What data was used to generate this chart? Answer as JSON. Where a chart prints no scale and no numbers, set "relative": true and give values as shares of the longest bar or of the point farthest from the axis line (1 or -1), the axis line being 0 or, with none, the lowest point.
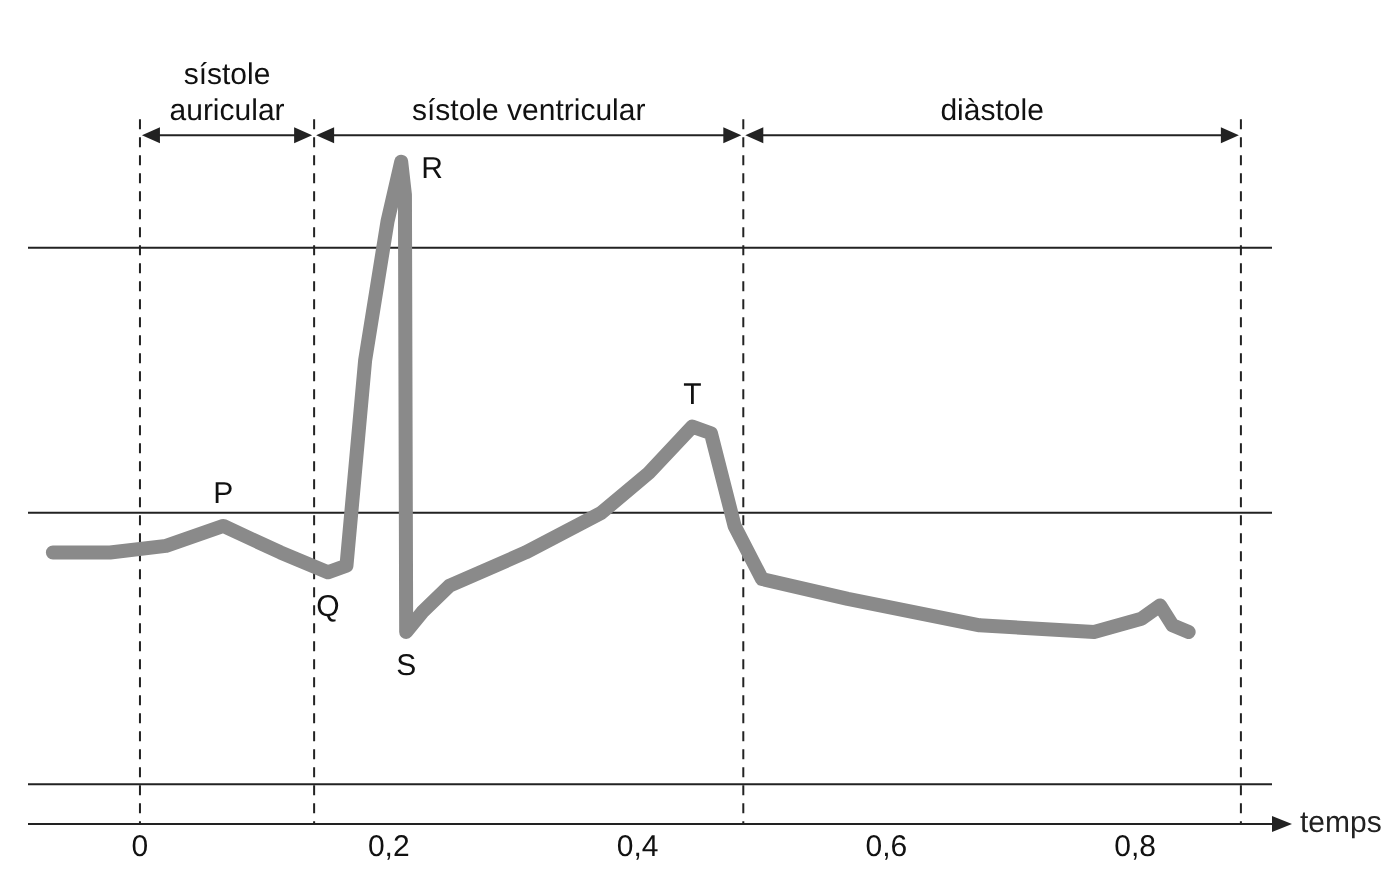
{
  "chart_data": {
    "type": "line",
    "relative": true,
    "xlabel": "temps",
    "xlim": [
      -0.09,
      0.91
    ],
    "xticks": [
      0,
      {
        "value": 0.2,
        "label": "0,2"
      },
      {
        "value": 0.4,
        "label": "0,4"
      },
      {
        "value": 0.6,
        "label": "0,6"
      },
      {
        "value": 0.8,
        "label": "0,8"
      }
    ],
    "series": [
      {
        "color": "#8a8a8a",
        "x": [
          -0.07,
          -0.024,
          0.021,
          0.067,
          0.113,
          0.151,
          0.166,
          0.181,
          0.199,
          0.21,
          0.213,
          0.214,
          0.227,
          0.249,
          0.31,
          0.371,
          0.409,
          0.444,
          0.459,
          0.478,
          0.5,
          0.569,
          0.675,
          0.767,
          0.805,
          0.82,
          0.83,
          0.843
        ],
        "values": [
          0.41,
          0.41,
          0.42,
          0.45,
          0.41,
          0.38,
          0.39,
          0.7,
          0.91,
          1,
          0.95,
          0.29,
          0.32,
          0.36,
          0.41,
          0.47,
          0.53,
          0.6,
          0.59,
          0.45,
          0.37,
          0.34,
          0.3,
          0.29,
          0.31,
          0.33,
          0.3,
          0.29
        ]
      }
    ],
    "ref_lines": [
      {
        "axis": "y",
        "value": 0.87,
        "color": "#222222"
      },
      {
        "axis": "y",
        "value": 0.47,
        "color": "#222222"
      },
      {
        "axis": "y",
        "value": 0.06,
        "color": "#222222"
      },
      {
        "axis": "x",
        "value": 0,
        "color": "#222222",
        "line_style": "dashed"
      },
      {
        "axis": "x",
        "value": 0.14,
        "color": "#222222",
        "line_style": "dashed"
      },
      {
        "axis": "x",
        "value": 0.485,
        "color": "#222222",
        "line_style": "dashed"
      },
      {
        "axis": "x",
        "value": 0.885,
        "color": "#222222",
        "line_style": "dashed"
      }
    ],
    "annotations": [
      "sístole auricular",
      "sístole ventricular",
      "diàstole",
      {
        "text": "P",
        "x": 0.067,
        "y": 0.45
      },
      {
        "text": "Q",
        "x": 0.151,
        "y": 0.38
      },
      {
        "text": "R",
        "x": 0.21,
        "y": 1
      },
      {
        "text": "S",
        "x": 0.214,
        "y": 0.29
      },
      {
        "text": "T",
        "x": 0.444,
        "y": 0.6
      }
    ],
    "grid": false,
    "legend": false,
    "marker": "none",
    "line_style": "solid"
  }
}
